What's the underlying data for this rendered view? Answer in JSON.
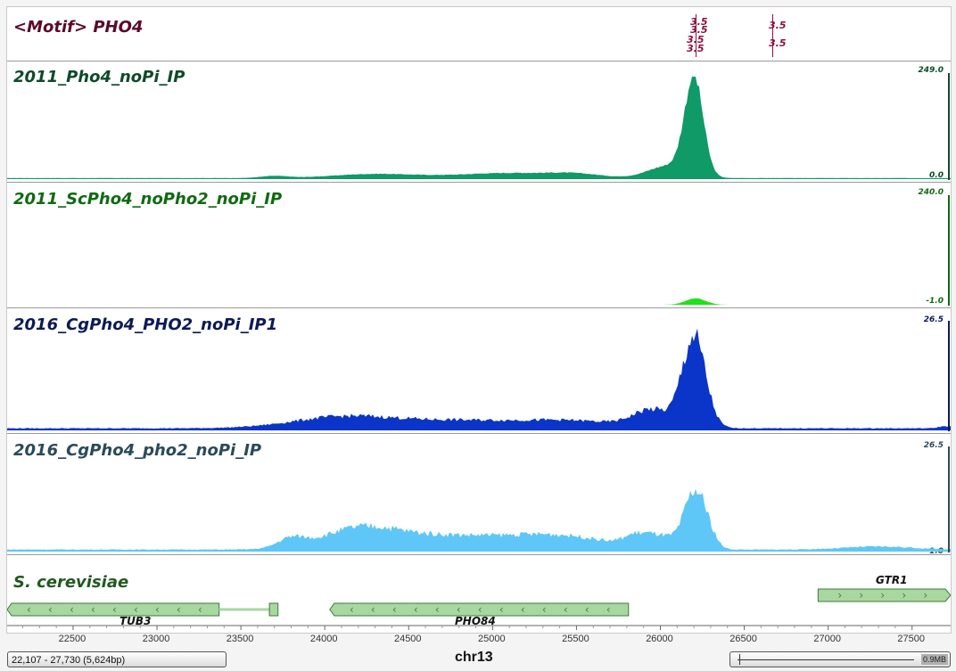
{
  "tracks": [
    {
      "title": "2011_Pho4_noPi_IP",
      "max": "249.0",
      "min": "0.0",
      "color": "#0f9a68",
      "title_color": "#0e4a2a",
      "scale_color": "#0e4a2a"
    },
    {
      "title": "2011_ScPho4_noPho2_noPi_IP",
      "max": "240.0",
      "min": "-1.0",
      "color": "#22e01a",
      "title_color": "#0f6a12",
      "scale_color": "#0f6a12"
    },
    {
      "title": "2016_CgPho4_PHO2_noPi_IP1",
      "max": "26.5",
      "min": "",
      "color": "#0a35c8",
      "title_color": "#0c1a55",
      "scale_color": "#0c1a55"
    },
    {
      "title": "2016_CgPho4_pho2_noPi_IP",
      "max": "26.5",
      "min": "1.0",
      "color": "#5ec7f7",
      "title_color": "#2a4a5a",
      "scale_color": "#2a4a5a"
    }
  ],
  "motif": {
    "title": "<Motif> PHO4",
    "color": "#8a0f3c",
    "labels": [
      "3.5",
      "3.5",
      "3.5",
      "3.5",
      "3.5",
      "3.5"
    ]
  },
  "genes": {
    "title": "S. cerevisiae",
    "title_color": "#1f5a1f",
    "fill_color": "#a8d8a0",
    "items": [
      {
        "name": "TUB3",
        "start": 22107,
        "end": 23370,
        "strand": "-"
      },
      {
        "name": "",
        "start": 23370,
        "end": 23700,
        "strand": "intron"
      },
      {
        "name": "PHO84",
        "start": 24030,
        "end": 25810,
        "strand": "-"
      },
      {
        "name": "GTR1",
        "start": 26940,
        "end": 27730,
        "strand": "+"
      }
    ]
  },
  "axis": {
    "start": 22107,
    "end": 27730,
    "ticks": [
      "22500",
      "23000",
      "23500",
      "24000",
      "24500",
      "25000",
      "25500",
      "26000",
      "26500",
      "27000",
      "27500"
    ]
  },
  "status": {
    "range": "22,107 - 27,730 (5,624bp)",
    "chromosome": "chr13",
    "zoom": "0.9MB"
  }
}
